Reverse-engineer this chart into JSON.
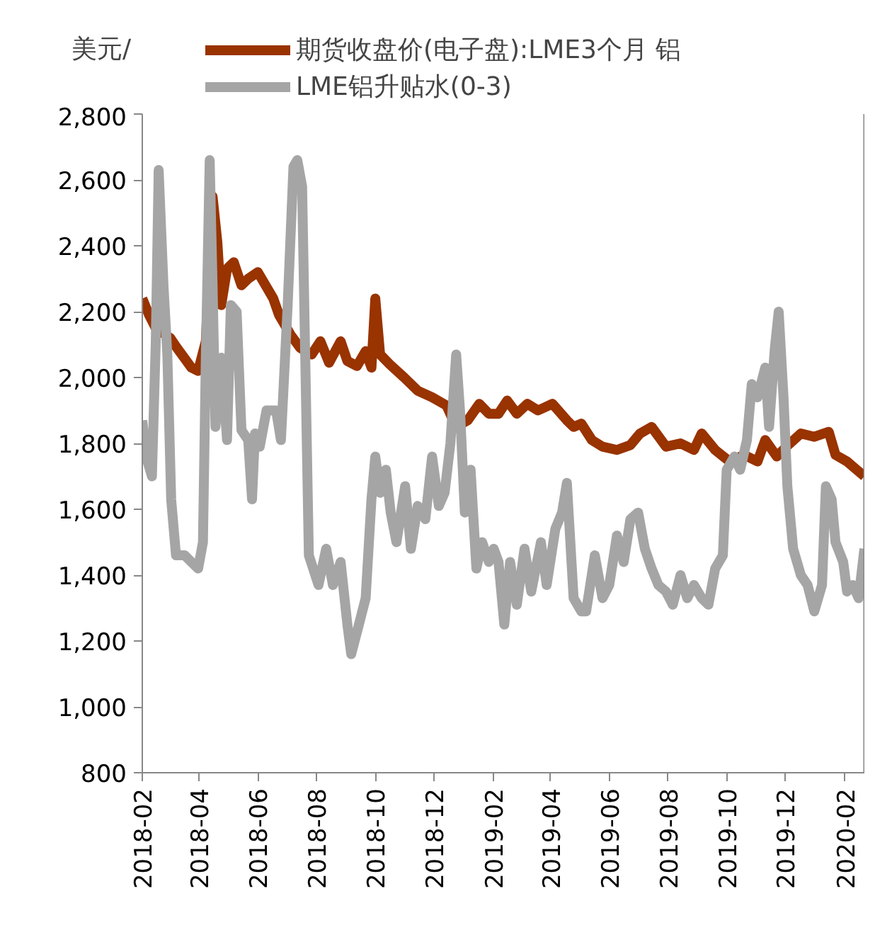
{
  "chart_data": {
    "type": "line",
    "ylabel": "美元/",
    "xlim": [
      "2018-02-01",
      "2020-02-21"
    ],
    "xticks": [
      "2018-02",
      "2018-04",
      "2018-06",
      "2018-08",
      "2018-10",
      "2018-12",
      "2019-02",
      "2019-04",
      "2019-06",
      "2019-08",
      "2019-10",
      "2019-12",
      "2020-02"
    ],
    "ylim": [
      800,
      2800
    ],
    "yticks": [
      {
        "value": 800,
        "label": "800"
      },
      {
        "value": 1000,
        "label": "1,000"
      },
      {
        "value": 1200,
        "label": "1,200"
      },
      {
        "value": 1400,
        "label": "1,400"
      },
      {
        "value": 1600,
        "label": "1,600"
      },
      {
        "value": 1800,
        "label": "1,800"
      },
      {
        "value": 2000,
        "label": "2,000"
      },
      {
        "value": 2200,
        "label": "2,200"
      },
      {
        "value": 2400,
        "label": "2,400"
      },
      {
        "value": 2600,
        "label": "2,600"
      },
      {
        "value": 2800,
        "label": "2,800"
      }
    ],
    "grid": false,
    "legend": "top",
    "marker": "none",
    "line_style": "solid",
    "series": [
      {
        "name": "期货收盘价(电子盘):LME3个月 铝",
        "color": "#993300",
        "x": [
          "2018-02-01",
          "2018-02-08",
          "2018-02-15",
          "2018-03-02",
          "2018-03-09",
          "2018-03-24",
          "2018-03-31",
          "2018-04-08",
          "2018-04-15",
          "2018-04-20",
          "2018-04-24",
          "2018-04-30",
          "2018-05-07",
          "2018-05-15",
          "2018-05-22",
          "2018-06-01",
          "2018-06-09",
          "2018-06-17",
          "2018-06-23",
          "2018-07-05",
          "2018-07-15",
          "2018-07-27",
          "2018-08-05",
          "2018-08-14",
          "2018-08-26",
          "2018-09-02",
          "2018-09-12",
          "2018-09-21",
          "2018-09-27",
          "2018-10-01",
          "2018-10-06",
          "2018-10-16",
          "2018-10-31",
          "2018-11-14",
          "2018-11-29",
          "2018-12-14",
          "2018-12-24",
          "2019-01-05",
          "2019-01-17",
          "2019-01-27",
          "2019-02-06",
          "2019-02-15",
          "2019-02-25",
          "2019-03-08",
          "2019-03-19",
          "2019-04-03",
          "2019-04-18",
          "2019-04-25",
          "2019-05-03",
          "2019-05-14",
          "2019-05-25",
          "2019-06-09",
          "2019-06-23",
          "2019-07-03",
          "2019-07-15",
          "2019-07-30",
          "2019-08-14",
          "2019-08-28",
          "2019-09-05",
          "2019-09-19",
          "2019-10-04",
          "2019-10-19",
          "2019-11-02",
          "2019-11-10",
          "2019-11-22",
          "2019-12-02",
          "2019-12-17",
          "2019-12-31",
          "2020-01-15",
          "2020-01-22",
          "2020-02-03",
          "2020-02-13",
          "2020-02-21"
        ],
        "values": [
          2240,
          2190,
          2150,
          2120,
          2090,
          2030,
          2020,
          2110,
          2550,
          2410,
          2220,
          2330,
          2350,
          2280,
          2300,
          2320,
          2280,
          2240,
          2190,
          2130,
          2090,
          2070,
          2110,
          2045,
          2110,
          2050,
          2035,
          2080,
          2030,
          2240,
          2070,
          2040,
          2000,
          1960,
          1940,
          1915,
          1850,
          1870,
          1920,
          1890,
          1890,
          1930,
          1890,
          1920,
          1900,
          1920,
          1870,
          1850,
          1860,
          1810,
          1790,
          1780,
          1795,
          1830,
          1850,
          1790,
          1800,
          1780,
          1830,
          1780,
          1745,
          1765,
          1745,
          1810,
          1760,
          1790,
          1830,
          1820,
          1835,
          1765,
          1745,
          1720,
          1700
        ]
      },
      {
        "name": "LME铝升贴水(0-3)",
        "color": "#a5a5a5",
        "x": [
          "2018-02-01",
          "2018-02-05",
          "2018-02-11",
          "2018-02-15",
          "2018-02-18",
          "2018-02-23",
          "2018-02-27",
          "2018-03-03",
          "2018-03-08",
          "2018-03-17",
          "2018-03-24",
          "2018-03-31",
          "2018-04-05",
          "2018-04-08",
          "2018-04-12",
          "2018-04-15",
          "2018-04-18",
          "2018-04-24",
          "2018-04-30",
          "2018-05-04",
          "2018-05-10",
          "2018-05-15",
          "2018-05-22",
          "2018-05-26",
          "2018-05-29",
          "2018-06-03",
          "2018-06-10",
          "2018-06-20",
          "2018-06-25",
          "2018-07-02",
          "2018-07-08",
          "2018-07-12",
          "2018-07-17",
          "2018-07-21",
          "2018-07-24",
          "2018-08-03",
          "2018-08-11",
          "2018-08-18",
          "2018-08-26",
          "2018-09-02",
          "2018-09-06",
          "2018-09-14",
          "2018-09-21",
          "2018-09-27",
          "2018-10-01",
          "2018-10-06",
          "2018-10-12",
          "2018-10-17",
          "2018-10-23",
          "2018-11-01",
          "2018-11-07",
          "2018-11-14",
          "2018-11-22",
          "2018-11-29",
          "2018-12-06",
          "2018-12-12",
          "2018-12-18",
          "2018-12-24",
          "2018-12-28",
          "2019-01-02",
          "2019-01-08",
          "2019-01-14",
          "2019-01-20",
          "2019-01-27",
          "2019-02-01",
          "2019-02-06",
          "2019-02-12",
          "2019-02-18",
          "2019-02-25",
          "2019-03-05",
          "2019-03-12",
          "2019-03-22",
          "2019-03-28",
          "2019-04-06",
          "2019-04-13",
          "2019-04-18",
          "2019-04-25",
          "2019-05-03",
          "2019-05-08",
          "2019-05-17",
          "2019-05-25",
          "2019-06-01",
          "2019-06-09",
          "2019-06-16",
          "2019-06-23",
          "2019-07-01",
          "2019-07-08",
          "2019-07-15",
          "2019-07-22",
          "2019-07-30",
          "2019-08-06",
          "2019-08-14",
          "2019-08-21",
          "2019-08-28",
          "2019-09-05",
          "2019-09-12",
          "2019-09-19",
          "2019-09-27",
          "2019-10-01",
          "2019-10-09",
          "2019-10-15",
          "2019-10-22",
          "2019-10-27",
          "2019-11-02",
          "2019-11-10",
          "2019-11-14",
          "2019-11-20",
          "2019-11-24",
          "2019-11-29",
          "2019-12-03",
          "2019-12-09",
          "2019-12-17",
          "2019-12-24",
          "2019-12-31",
          "2020-01-08",
          "2020-01-12",
          "2020-01-18",
          "2020-01-22",
          "2020-01-30",
          "2020-02-03",
          "2020-02-09",
          "2020-02-15",
          "2020-02-21"
        ],
        "values": [
          1870,
          1760,
          1700,
          2110,
          2630,
          2280,
          2070,
          1630,
          1460,
          1460,
          1440,
          1420,
          1500,
          2060,
          2660,
          2280,
          1850,
          2060,
          1810,
          2220,
          2200,
          1840,
          1810,
          1630,
          1830,
          1790,
          1900,
          1900,
          1810,
          2220,
          2640,
          2660,
          2580,
          1940,
          1460,
          1370,
          1480,
          1370,
          1440,
          1250,
          1160,
          1250,
          1330,
          1630,
          1760,
          1650,
          1720,
          1590,
          1500,
          1670,
          1480,
          1610,
          1570,
          1760,
          1610,
          1650,
          1800,
          2070,
          1900,
          1590,
          1720,
          1420,
          1500,
          1440,
          1480,
          1440,
          1250,
          1440,
          1310,
          1480,
          1350,
          1500,
          1370,
          1540,
          1590,
          1680,
          1330,
          1290,
          1290,
          1460,
          1330,
          1370,
          1520,
          1440,
          1570,
          1590,
          1480,
          1420,
          1370,
          1350,
          1310,
          1400,
          1330,
          1370,
          1330,
          1310,
          1420,
          1460,
          1720,
          1760,
          1720,
          1810,
          1980,
          1940,
          2030,
          1850,
          2090,
          2200,
          1940,
          1670,
          1480,
          1400,
          1370,
          1290,
          1370,
          1670,
          1630,
          1500,
          1440,
          1350,
          1370,
          1330,
          1480
        ]
      }
    ]
  }
}
